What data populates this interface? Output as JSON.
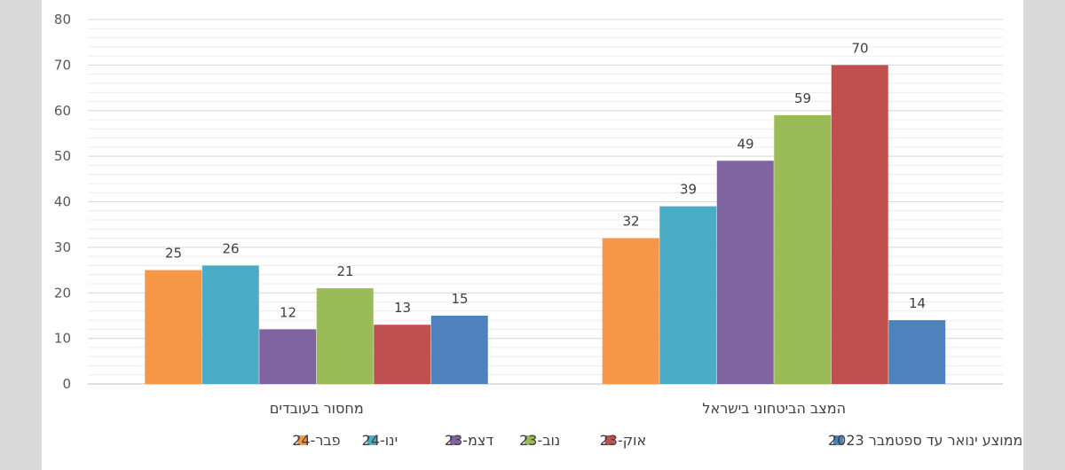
{
  "chart_data": {
    "type": "bar",
    "categories": [
      "המצב הביטחוני בישראל",
      "מחסור בעובדים"
    ],
    "series": [
      {
        "name": "ממוצע ינואר עד ספטמבר 2023",
        "color": "#4f81bd",
        "values": [
          14,
          15
        ]
      },
      {
        "name": "אוק-23",
        "color": "#c0504d",
        "values": [
          70,
          13
        ]
      },
      {
        "name": "נוב-23",
        "color": "#9bbb59",
        "values": [
          59,
          21
        ]
      },
      {
        "name": "דצמ-23",
        "color": "#8064a2",
        "values": [
          49,
          12
        ]
      },
      {
        "name": "ינו-24",
        "color": "#4bacc6",
        "values": [
          39,
          26
        ]
      },
      {
        "name": "פבר-24",
        "color": "#f79646",
        "values": [
          32,
          25
        ]
      }
    ],
    "yticks": [
      0,
      10,
      20,
      30,
      40,
      50,
      60,
      70,
      80
    ],
    "ylim": [
      0,
      80
    ],
    "minor_gridlines": true,
    "legend_position": "bottom",
    "title": "",
    "xlabel": "",
    "ylabel": ""
  }
}
